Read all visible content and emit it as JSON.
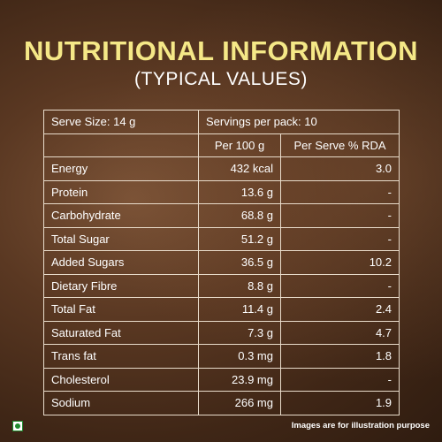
{
  "title": "NUTRITIONAL INFORMATION",
  "subtitle": "(TYPICAL VALUES)",
  "serve_size": "Serve Size: 14 g",
  "servings_per_pack": "Servings per pack: 10",
  "columns": {
    "per_100g": "Per 100 g",
    "per_serve_rda": "Per Serve % RDA"
  },
  "rows": [
    {
      "name": "Energy",
      "per_100g": "432 kcal",
      "rda": "3.0"
    },
    {
      "name": "Protein",
      "per_100g": "13.6 g",
      "rda": "-"
    },
    {
      "name": "Carbohydrate",
      "per_100g": "68.8 g",
      "rda": "-"
    },
    {
      "name": "Total Sugar",
      "per_100g": "51.2 g",
      "rda": "-"
    },
    {
      "name": "Added Sugars",
      "per_100g": "36.5 g",
      "rda": "10.2"
    },
    {
      "name": "Dietary Fibre",
      "per_100g": "8.8 g",
      "rda": "-"
    },
    {
      "name": "Total Fat",
      "per_100g": "11.4 g",
      "rda": "2.4"
    },
    {
      "name": "Saturated Fat",
      "per_100g": "7.3 g",
      "rda": "4.7"
    },
    {
      "name": "Trans fat",
      "per_100g": "0.3 mg",
      "rda": "1.8"
    },
    {
      "name": "Cholesterol",
      "per_100g": "23.9 mg",
      "rda": "-"
    },
    {
      "name": "Sodium",
      "per_100g": "266 mg",
      "rda": "1.9"
    }
  ],
  "disclaimer": "Images are for illustration purpose",
  "colors": {
    "title": "#f5e887",
    "border": "#e9dccb",
    "veg_green": "#1e8a2e"
  },
  "icons": {
    "veg_mark": "veg-symbol-icon"
  }
}
